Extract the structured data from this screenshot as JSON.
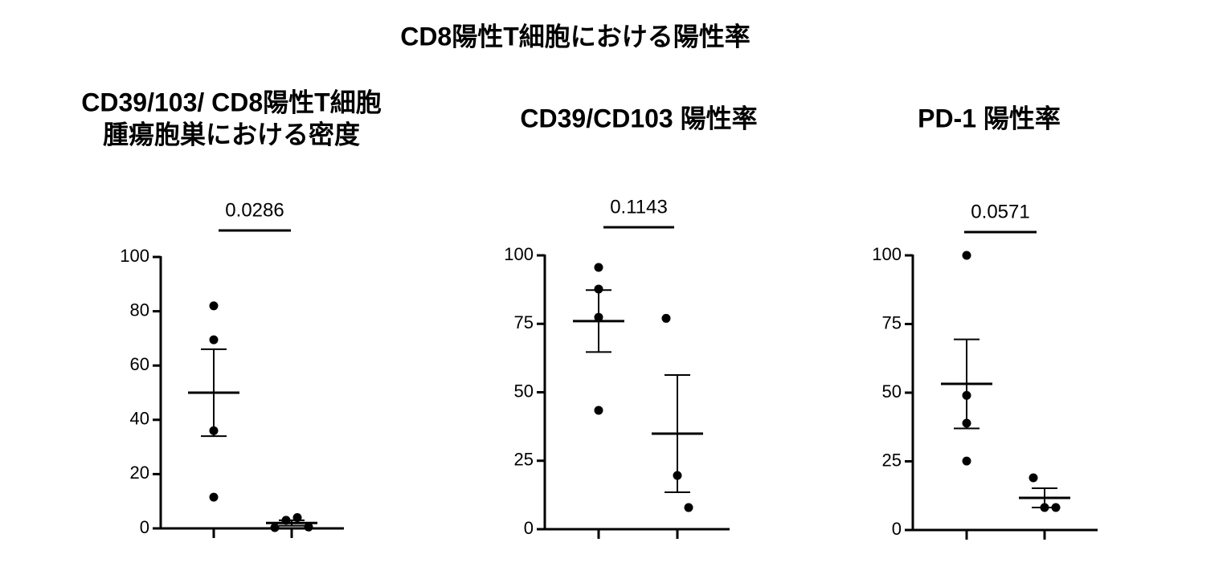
{
  "title": "CD8陽性T細胞における陽性率",
  "chart_data": [
    {
      "type": "dotplot",
      "title": [
        "CD39/103/ CD8陽性T細胞",
        "腫瘍胞巣における密度"
      ],
      "categories": [
        null,
        null
      ],
      "groups": [
        {
          "points": [
            82,
            69.5,
            36,
            11.5
          ],
          "mean": 50,
          "sem": 16
        },
        {
          "points": [
            0.3,
            3,
            4,
            0.5
          ],
          "mean": 2,
          "sem": 1
        }
      ],
      "ylim": [
        0,
        100
      ],
      "yticks": [
        0,
        20,
        40,
        60,
        80,
        100
      ],
      "annotation": "0.0286",
      "color": "#000000"
    },
    {
      "type": "dotplot",
      "title": [
        "CD39/CD103 陽性率"
      ],
      "categories": [
        null,
        null
      ],
      "groups": [
        {
          "points": [
            95.6,
            87.7,
            77.4,
            43.4
          ],
          "mean": 76,
          "sem": 11.3
        },
        {
          "points": [
            77,
            19.6,
            7.9
          ],
          "mean": 34.9,
          "sem": 21.4
        }
      ],
      "ylim": [
        0,
        100
      ],
      "yticks": [
        0,
        25,
        50,
        75,
        100
      ],
      "annotation": "0.1143",
      "color": "#000000"
    },
    {
      "type": "dotplot",
      "title": [
        "PD-1 陽性率"
      ],
      "categories": [
        null,
        null
      ],
      "groups": [
        {
          "points": [
            100,
            49,
            38.9,
            25.1
          ],
          "mean": 53.2,
          "sem": 16.2
        },
        {
          "points": [
            19,
            8.2,
            8.2
          ],
          "mean": 11.7,
          "sem": 3.5
        }
      ],
      "ylim": [
        0,
        100
      ],
      "yticks": [
        0,
        25,
        50,
        75,
        100
      ],
      "annotation": "0.0571",
      "color": "#000000"
    }
  ]
}
